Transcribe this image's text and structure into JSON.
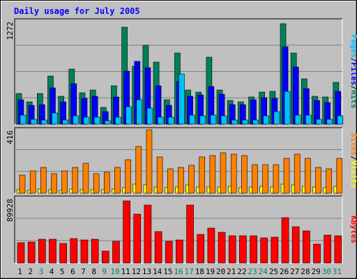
{
  "chart_data": {
    "type": "bar",
    "title": "Daily usage for July 2005",
    "categories": [
      "1",
      "2",
      "3",
      "4",
      "5",
      "6",
      "7",
      "8",
      "9",
      "10",
      "11",
      "12",
      "13",
      "14",
      "15",
      "16",
      "17",
      "18",
      "19",
      "20",
      "21",
      "22",
      "23",
      "24",
      "25",
      "26",
      "27",
      "28",
      "29",
      "30",
      "31"
    ],
    "weekend_days": [
      "3",
      "9",
      "10",
      "16",
      "17",
      "23",
      "24",
      "30",
      "31"
    ],
    "panels": [
      {
        "id": "hits",
        "max_label": "1272",
        "ylim": [
          0,
          1272
        ],
        "series": [
          {
            "name": "Hits",
            "color": "#00805c",
            "values": [
              380,
              280,
              380,
              600,
              350,
              680,
              390,
              420,
              210,
              480,
              1200,
              720,
              980,
              770,
              300,
              880,
              420,
              400,
              830,
              420,
              290,
              280,
              340,
              400,
              410,
              1250,
              880,
              560,
              350,
              340,
              520
            ]
          },
          {
            "name": "Files",
            "color": "#0000ff",
            "values": [
              300,
              230,
              240,
              450,
              280,
              500,
              320,
              350,
              160,
              340,
              660,
              780,
              700,
              480,
              230,
              530,
              350,
              360,
              470,
              370,
              240,
              240,
              300,
              330,
              320,
              960,
              710,
              440,
              290,
              270,
              410
            ]
          },
          {
            "name": "Pages",
            "color": "#00c0ff",
            "values": [
              110,
              60,
              50,
              140,
              50,
              100,
              85,
              90,
              45,
              85,
              215,
              300,
              200,
              90,
              85,
              620,
              115,
              100,
              110,
              100,
              50,
              50,
              55,
              100,
              160,
              410,
              110,
              115,
              60,
              60,
              100
            ]
          }
        ],
        "right_label": [
          "Pages",
          "Files",
          "Hits"
        ],
        "right_colors": [
          "#00c0ff",
          "#0000ff",
          "#00805c"
        ]
      },
      {
        "id": "sites",
        "max_label": "416",
        "ylim": [
          0,
          416
        ],
        "series": [
          {
            "name": "Visits",
            "color": "#ffff00",
            "values": [
              25,
              20,
              30,
              25,
              20,
              30,
              25,
              25,
              25,
              30,
              35,
              60,
              55,
              40,
              35,
              40,
              55,
              40,
              40,
              40,
              45,
              35,
              40,
              45,
              40,
              60,
              55,
              45,
              40,
              35,
              45
            ]
          },
          {
            "name": "Sites",
            "color": "#ff8000",
            "values": [
              120,
              150,
              170,
              130,
              150,
              170,
              200,
              130,
              140,
              170,
              220,
              310,
              420,
              240,
              160,
              170,
              185,
              240,
              250,
              270,
              260,
              250,
              190,
              190,
              190,
              230,
              260,
              230,
              170,
              160,
              230
            ]
          }
        ],
        "right_label": [
          "Sites",
          "Visits"
        ],
        "right_colors": [
          "#ff8000",
          "#ffff00"
        ]
      },
      {
        "id": "kbytes",
        "max_label": "89928",
        "ylim": [
          0,
          89928
        ],
        "series": [
          {
            "name": "KBytes",
            "color": "#ff0000",
            "values": [
              28000,
              29000,
              33000,
              33000,
              27000,
              34000,
              32000,
              33000,
              17000,
              30000,
              87000,
              68000,
              81000,
              44000,
              30000,
              32000,
              81000,
              40000,
              49000,
              43000,
              38000,
              38000,
              38000,
              35000,
              36000,
              64000,
              51000,
              45000,
              26000,
              39000,
              38000
            ]
          }
        ],
        "right_label": [
          "KBytes"
        ],
        "right_colors": [
          "#ff0000"
        ]
      }
    ],
    "label_sep": "/"
  },
  "colors": {
    "background": "#c0c0c0",
    "plot_bg": "#c0c0c0",
    "weekday_label": "#000000",
    "weekend_label": "#00805c",
    "title": "#0000ff",
    "gridline": "#808080"
  }
}
